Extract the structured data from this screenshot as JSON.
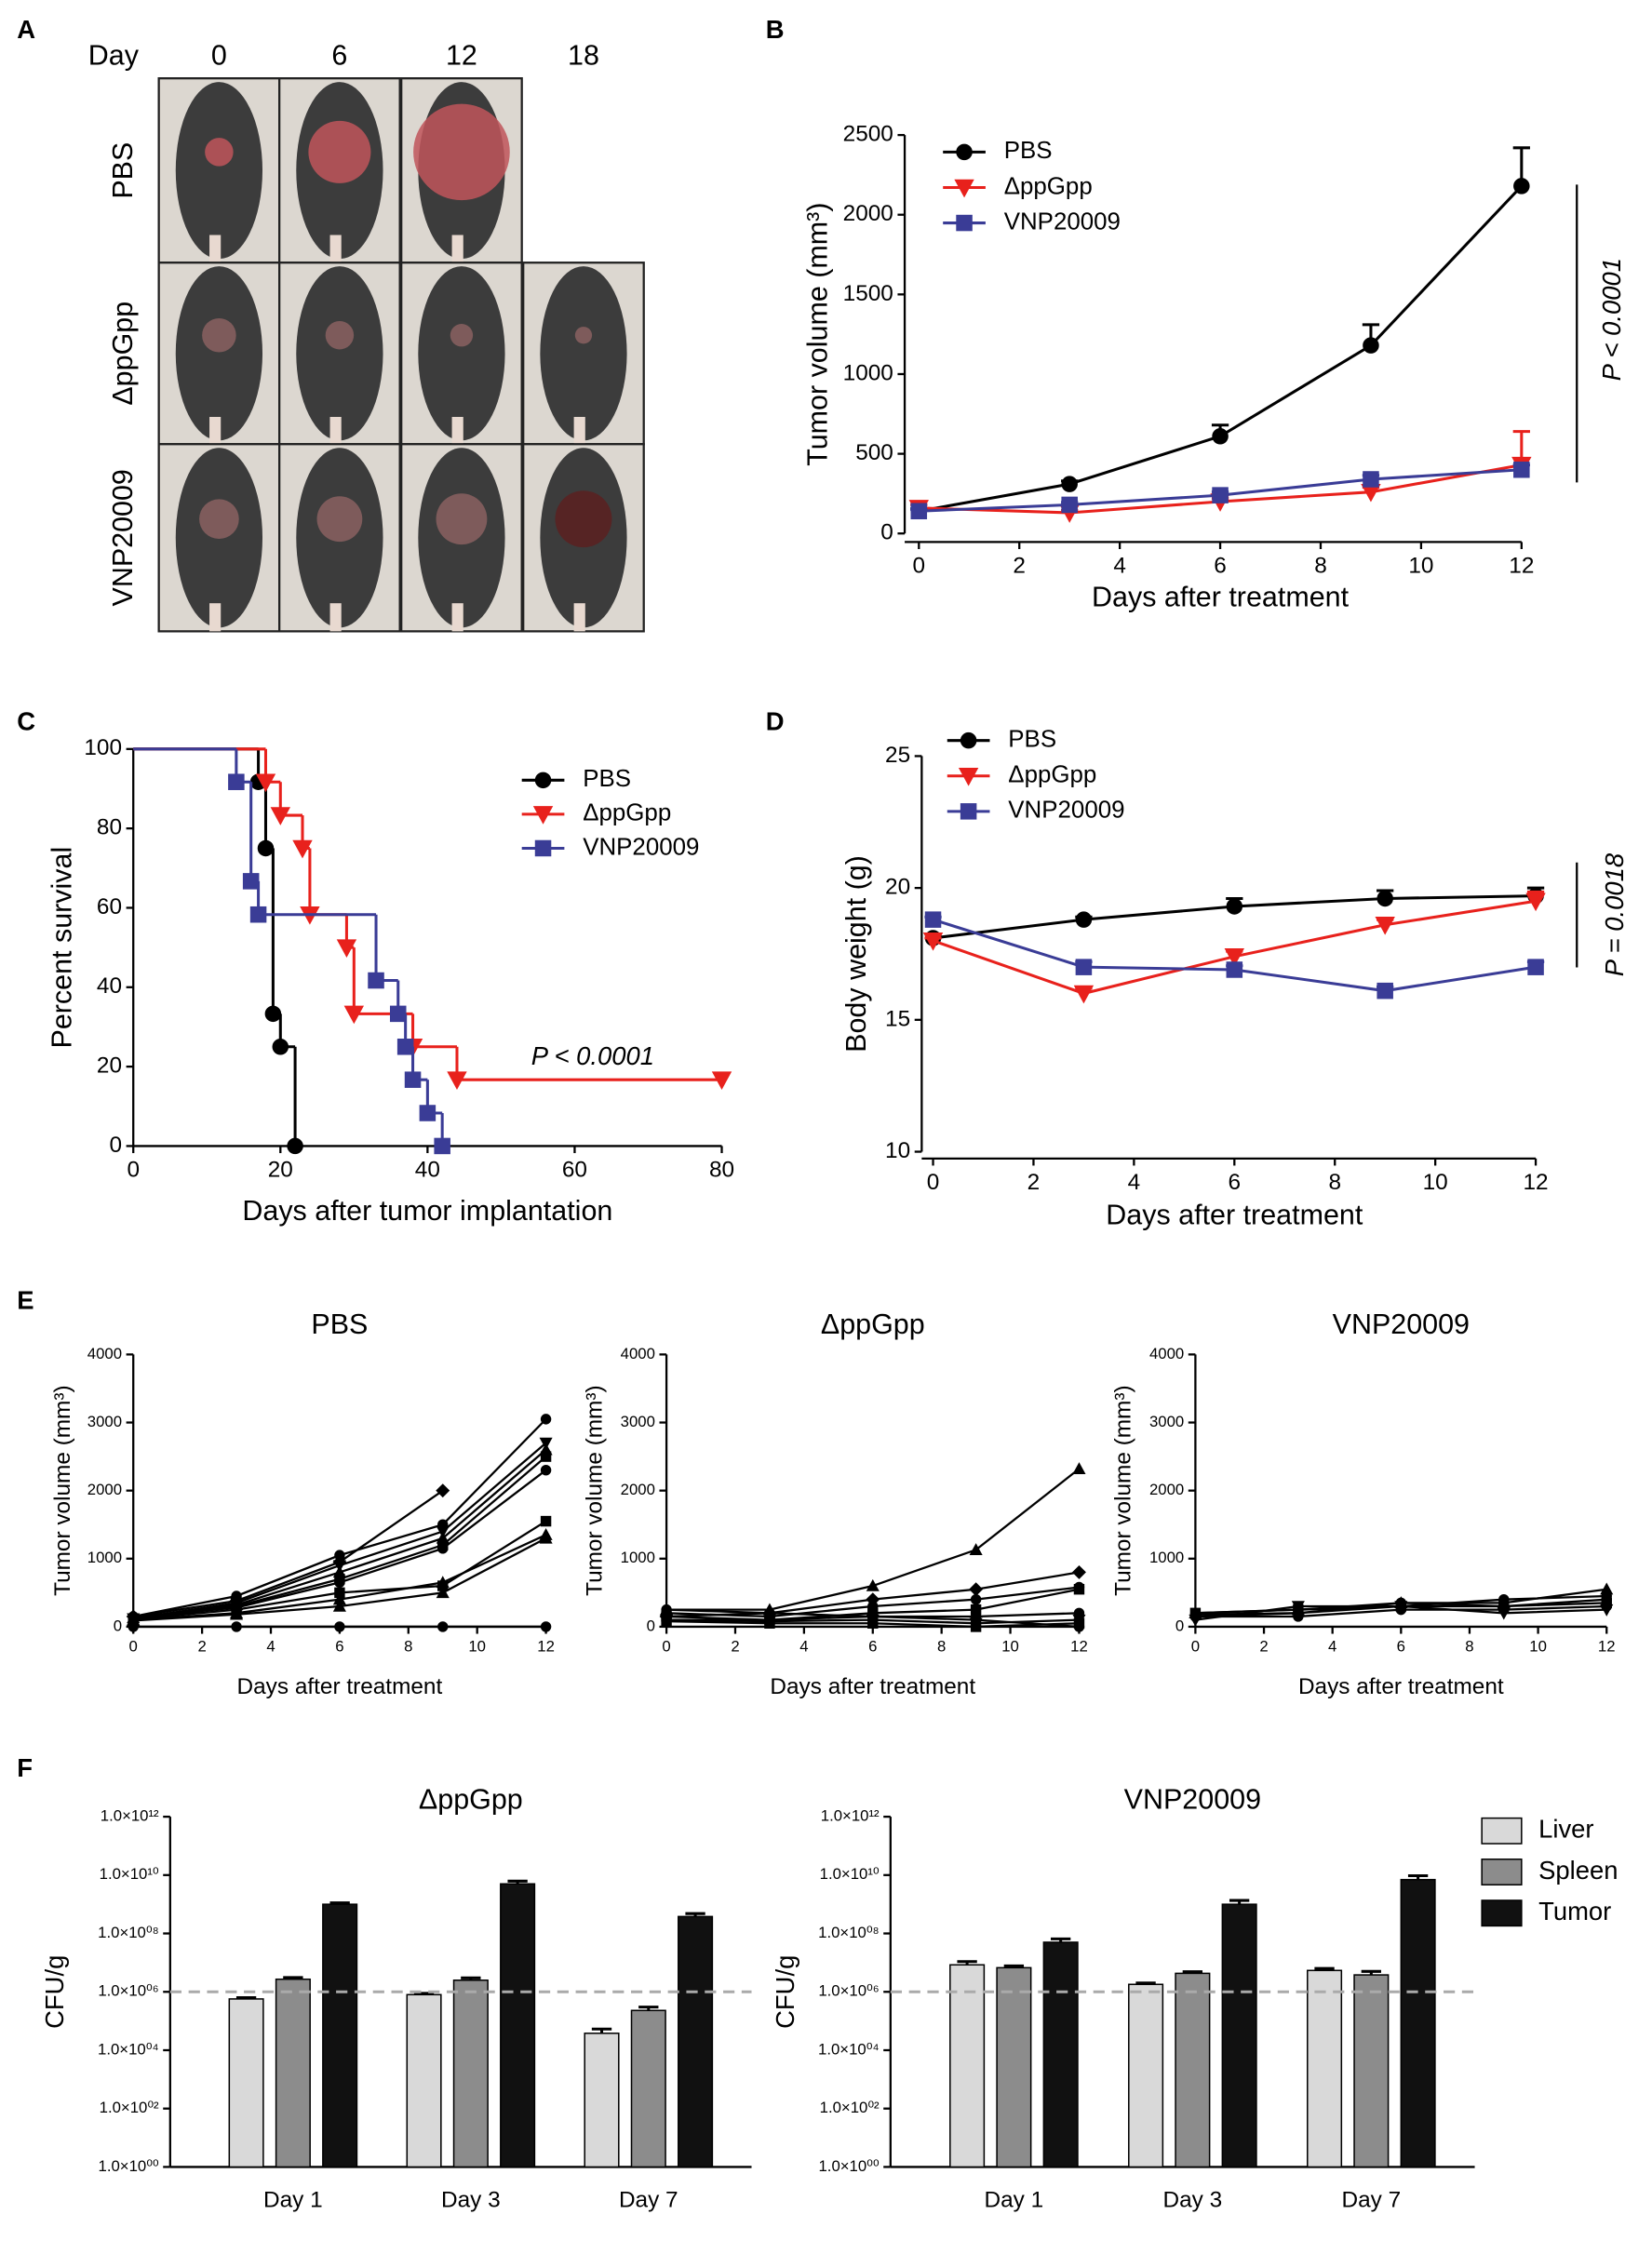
{
  "panel_labels": [
    "A",
    "B",
    "C",
    "D",
    "E",
    "F"
  ],
  "photo_grid": {
    "header": "Day",
    "days": [
      "0",
      "6",
      "12",
      "18"
    ],
    "rows": [
      "PBS",
      "ΔppGpp",
      "VNP20009"
    ]
  },
  "chart_data": [
    {
      "type": "line",
      "y_label": "Tumor volume (mm³)",
      "x_label": "Days after treatment",
      "x": [
        0,
        3,
        6,
        9,
        12
      ],
      "xlim": [
        0,
        12
      ],
      "xticks": [
        0,
        2,
        4,
        6,
        8,
        10,
        12
      ],
      "ylim": [
        0,
        2500
      ],
      "yticks": [
        0,
        500,
        1000,
        1500,
        2000,
        2500
      ],
      "legend": "upper left",
      "annotation": "P < 0.0001",
      "series": [
        {
          "name": "PBS",
          "color": "#000000",
          "marker": "circle",
          "values": [
            140,
            310,
            610,
            1180,
            2180
          ],
          "errors": [
            15,
            20,
            70,
            130,
            240
          ]
        },
        {
          "name": "ΔppGpp",
          "color": "#e8211c",
          "marker": "triangle-down",
          "values": [
            160,
            130,
            200,
            260,
            430
          ],
          "errors": [
            20,
            15,
            20,
            30,
            210
          ]
        },
        {
          "name": "VNP20009",
          "color": "#3a3c96",
          "marker": "square",
          "values": [
            140,
            180,
            240,
            340,
            400
          ],
          "errors": [
            10,
            15,
            20,
            25,
            30
          ]
        }
      ]
    },
    {
      "type": "step",
      "y_label": "Percent survival",
      "x_label": "Days after tumor implantation",
      "xlim": [
        0,
        80
      ],
      "xticks": [
        0,
        20,
        40,
        60,
        80
      ],
      "ylim": [
        0,
        100
      ],
      "yticks": [
        0,
        20,
        40,
        60,
        80,
        100
      ],
      "legend": "upper right",
      "annotation": "P < 0.0001",
      "series": [
        {
          "name": "PBS",
          "color": "#000000",
          "marker": "circle",
          "x": [
            0,
            17,
            18,
            19,
            20,
            22
          ],
          "values": [
            100,
            91.7,
            75,
            33.3,
            25,
            0
          ]
        },
        {
          "name": "ΔppGpp",
          "color": "#e8211c",
          "marker": "triangle-down",
          "x": [
            0,
            18,
            20,
            23,
            24,
            29,
            30,
            38,
            44,
            80
          ],
          "values": [
            100,
            91.7,
            83.3,
            75,
            58.3,
            50,
            33.3,
            25,
            16.7,
            16.7
          ]
        },
        {
          "name": "VNP20009",
          "color": "#3a3c96",
          "marker": "square",
          "x": [
            0,
            14,
            16,
            17,
            33,
            36,
            37,
            38,
            40,
            42
          ],
          "values": [
            100,
            91.7,
            66.7,
            58.3,
            41.7,
            33.3,
            25,
            16.7,
            8.3,
            0
          ]
        }
      ]
    },
    {
      "type": "line",
      "y_label": "Body weight (g)",
      "x_label": "Days after treatment",
      "x": [
        0,
        3,
        6,
        9,
        12
      ],
      "xlim": [
        0,
        12
      ],
      "xticks": [
        0,
        2,
        4,
        6,
        8,
        10,
        12
      ],
      "ylim": [
        10,
        25
      ],
      "yticks": [
        10,
        15,
        20,
        25
      ],
      "legend": "upper left",
      "annotation": "P = 0.0018",
      "series": [
        {
          "name": "PBS",
          "color": "#000000",
          "marker": "circle",
          "values": [
            18.1,
            18.8,
            19.3,
            19.6,
            19.7
          ],
          "errors": [
            0.15,
            0.1,
            0.3,
            0.3,
            0.3
          ]
        },
        {
          "name": "ΔppGpp",
          "color": "#e8211c",
          "marker": "triangle-down",
          "values": [
            18.0,
            16.0,
            17.4,
            18.6,
            19.5
          ],
          "errors": [
            0.1,
            0.2,
            0.2,
            0.2,
            0.35
          ]
        },
        {
          "name": "VNP20009",
          "color": "#3a3c96",
          "marker": "square",
          "values": [
            18.8,
            17.0,
            16.9,
            16.1,
            17.0
          ],
          "errors": [
            0.1,
            0.2,
            0.15,
            0.15,
            0.2
          ]
        }
      ]
    },
    {
      "type": "line",
      "title": "PBS",
      "y_label": "Tumor volume (mm³)",
      "x_label": "Days after treatment",
      "color": "#000000",
      "x": [
        0,
        3,
        6,
        9,
        12
      ],
      "xlim": [
        0,
        12
      ],
      "xticks": [
        0,
        2,
        4,
        6,
        8,
        10,
        12
      ],
      "ylim": [
        0,
        4000
      ],
      "yticks": [
        0,
        1000,
        2000,
        3000,
        4000
      ],
      "series": [
        {
          "marker": "circle",
          "values": [
            150,
            450,
            1050,
            1500,
            3050
          ]
        },
        {
          "marker": "diamond",
          "values": [
            150,
            380,
            950,
            2000,
            null
          ]
        },
        {
          "marker": "triangle-down",
          "values": [
            120,
            350,
            900,
            1400,
            2700
          ]
        },
        {
          "marker": "triangle-up",
          "values": [
            130,
            320,
            800,
            1300,
            2600
          ]
        },
        {
          "marker": "square",
          "values": [
            100,
            300,
            700,
            1200,
            2500
          ]
        },
        {
          "marker": "circle",
          "values": [
            140,
            280,
            650,
            1150,
            2300
          ]
        },
        {
          "marker": "square",
          "values": [
            110,
            250,
            500,
            600,
            1550
          ]
        },
        {
          "marker": "triangle-up",
          "values": [
            100,
            200,
            400,
            650,
            1350
          ]
        },
        {
          "marker": "triangle-up",
          "values": [
            90,
            180,
            300,
            500,
            1300
          ]
        },
        {
          "marker": "circle",
          "values": [
            0,
            0,
            0,
            0,
            0
          ]
        }
      ]
    },
    {
      "type": "line",
      "title": "ΔppGpp",
      "y_label": "Tumor volume (mm³)",
      "x_label": "Days after treatment",
      "color": "#000000",
      "x": [
        0,
        3,
        6,
        9,
        12
      ],
      "xlim": [
        0,
        12
      ],
      "xticks": [
        0,
        2,
        4,
        6,
        8,
        10,
        12
      ],
      "ylim": [
        0,
        4000
      ],
      "yticks": [
        0,
        1000,
        2000,
        3000,
        4000
      ],
      "series": [
        {
          "marker": "triangle-up",
          "values": [
            250,
            250,
            600,
            1130,
            2320
          ]
        },
        {
          "marker": "diamond",
          "values": [
            150,
            200,
            400,
            550,
            800
          ]
        },
        {
          "marker": "circle",
          "values": [
            200,
            150,
            300,
            400,
            580
          ]
        },
        {
          "marker": "square",
          "values": [
            150,
            100,
            200,
            250,
            550
          ]
        },
        {
          "marker": "circle",
          "values": [
            100,
            100,
            150,
            150,
            200
          ]
        },
        {
          "marker": "triangle-down",
          "values": [
            100,
            80,
            100,
            50,
            100
          ]
        },
        {
          "marker": "square",
          "values": [
            80,
            50,
            50,
            0,
            50
          ]
        },
        {
          "marker": "circle",
          "values": [
            250,
            200,
            150,
            100,
            0
          ]
        }
      ]
    },
    {
      "type": "line",
      "title": "VNP20009",
      "y_label": "Tumor volume (mm³)",
      "x_label": "Days after treatment",
      "color": "#000000",
      "x": [
        0,
        3,
        6,
        9,
        12
      ],
      "xlim": [
        0,
        12
      ],
      "xticks": [
        0,
        2,
        4,
        6,
        8,
        10,
        12
      ],
      "ylim": [
        0,
        4000
      ],
      "yticks": [
        0,
        1000,
        2000,
        3000,
        4000
      ],
      "series": [
        {
          "marker": "triangle-up",
          "values": [
            200,
            250,
            350,
            350,
            550
          ]
        },
        {
          "marker": "circle",
          "values": [
            150,
            200,
            300,
            400,
            450
          ]
        },
        {
          "marker": "square",
          "values": [
            200,
            250,
            300,
            300,
            350
          ]
        },
        {
          "marker": "circle",
          "values": [
            150,
            150,
            250,
            250,
            300
          ]
        },
        {
          "marker": "triangle-down",
          "values": [
            100,
            300,
            300,
            200,
            250
          ]
        },
        {
          "marker": "circle",
          "values": [
            180,
            200,
            350,
            300,
            400
          ]
        }
      ]
    },
    {
      "type": "bar",
      "title": "ΔppGpp",
      "y_label": "CFU/g",
      "log_scale": true,
      "categories": [
        "Day 1",
        "Day 3",
        "Day 7"
      ],
      "ylim": [
        1,
        1000000000000
      ],
      "yticks": [
        {
          "value": 1,
          "label": "1.0×10⁰⁰"
        },
        {
          "value": 100,
          "label": "1.0×10⁰²"
        },
        {
          "value": 10000,
          "label": "1.0×10⁰⁴"
        },
        {
          "value": 1000000,
          "label": "1.0×10⁰⁶"
        },
        {
          "value": 100000000,
          "label": "1.0×10⁰⁸"
        },
        {
          "value": 10000000000,
          "label": "1.0×10¹⁰"
        },
        {
          "value": 1000000000000,
          "label": "1.0×10¹²"
        }
      ],
      "hline": 1000000,
      "series": [
        {
          "name": "Liver",
          "color": "#d9d9d9",
          "values": [
            570000,
            800000,
            38000
          ],
          "errors": [
            60000,
            90000,
            15000
          ]
        },
        {
          "name": "Spleen",
          "color": "#8c8c8c",
          "values": [
            2700000,
            2500000,
            230000
          ],
          "errors": [
            400000,
            500000,
            70000
          ]
        },
        {
          "name": "Tumor",
          "color": "#111111",
          "values": [
            1000000000,
            5000000000,
            380000000
          ],
          "errors": [
            120000000,
            1200000000,
            100000000
          ]
        }
      ]
    },
    {
      "type": "bar",
      "title": "VNP20009",
      "y_label": "CFU/g",
      "log_scale": true,
      "legend": "right",
      "categories": [
        "Day 1",
        "Day 3",
        "Day 7"
      ],
      "ylim": [
        1,
        1000000000000
      ],
      "yticks": [
        {
          "value": 1,
          "label": "1.0×10⁰⁰"
        },
        {
          "value": 100,
          "label": "1.0×10⁰²"
        },
        {
          "value": 10000,
          "label": "1.0×10⁰⁴"
        },
        {
          "value": 1000000,
          "label": "1.0×10⁰⁶"
        },
        {
          "value": 100000000,
          "label": "1.0×10⁰⁸"
        },
        {
          "value": 10000000000,
          "label": "1.0×10¹⁰"
        },
        {
          "value": 1000000000000,
          "label": "1.0×10¹²"
        }
      ],
      "hline": 1000000,
      "series": [
        {
          "name": "Liver",
          "color": "#d9d9d9",
          "values": [
            8400000,
            1800000,
            5400000
          ],
          "errors": [
            2500000,
            200000,
            900000
          ]
        },
        {
          "name": "Spleen",
          "color": "#8c8c8c",
          "values": [
            6700000,
            4300000,
            3800000
          ],
          "errors": [
            1000000,
            600000,
            1200000
          ]
        },
        {
          "name": "Tumor",
          "color": "#111111",
          "values": [
            50000000,
            1000000000,
            7000000000
          ],
          "errors": [
            15000000,
            350000000,
            2500000000
          ]
        }
      ]
    }
  ]
}
